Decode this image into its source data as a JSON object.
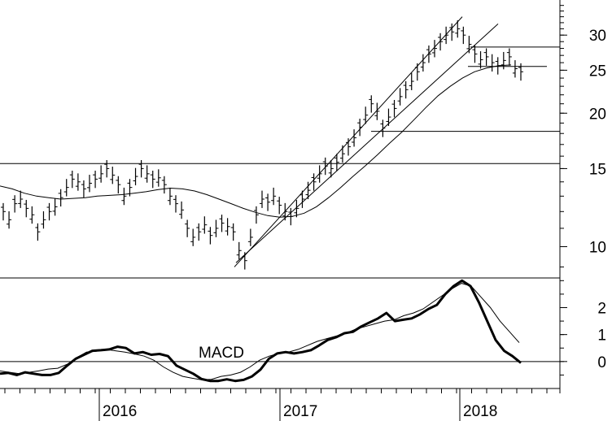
{
  "chart_data": [
    {
      "type": "line",
      "panel": "price",
      "scale": "log",
      "style": "ohlc-bars",
      "ylim": [
        8.5,
        36
      ],
      "yticks": [
        10,
        15,
        20,
        25,
        30
      ],
      "ytick_labels": [
        "10",
        "15",
        "20",
        "25",
        "30"
      ],
      "x_ticks": [
        "2016",
        "2017",
        "2018"
      ],
      "series": [
        {
          "values": [
            12.0,
            11.5,
            12.5,
            12.8,
            12.2,
            11.8,
            10.8,
            11.5,
            12.0,
            12.3,
            12.9,
            13.6,
            14.2,
            14.0,
            13.5,
            13.9,
            14.2,
            14.6,
            15.0,
            14.5,
            13.8,
            13.0,
            13.6,
            14.4,
            15.0,
            14.6,
            14.2,
            14.3,
            13.8,
            13.0,
            12.5,
            12.1,
            11.0,
            10.5,
            10.8,
            11.2,
            10.6,
            11.0,
            11.3,
            11.1,
            10.8,
            9.8,
            9.3,
            10.5,
            11.8,
            12.8,
            12.6,
            13.0,
            12.4,
            12.0,
            11.7,
            12.2,
            12.8,
            13.4,
            14.0,
            14.6,
            15.2,
            15.0,
            15.5,
            16.2,
            16.8,
            17.6,
            18.6,
            19.8,
            21.0,
            20.2,
            18.5,
            19.6,
            20.5,
            21.8,
            22.6,
            23.6,
            24.8,
            26.0,
            27.2,
            28.0,
            29.0,
            30.0,
            30.5,
            31.0,
            30.0,
            28.6,
            27.2,
            26.4,
            26.8,
            26.0,
            25.6,
            26.3,
            26.8,
            25.2,
            24.8
          ]
        },
        {
          "values": [
            13.7,
            13.5,
            13.2,
            13.0,
            12.9,
            12.8,
            12.85,
            12.9,
            13.0,
            13.05,
            13.1,
            13.2,
            13.3,
            13.45,
            13.55,
            13.5,
            13.35,
            13.1,
            12.8,
            12.5,
            12.2,
            11.95,
            11.75,
            11.65,
            11.7,
            11.9,
            12.3,
            12.9,
            13.6,
            14.4,
            15.2,
            16.1,
            17.1,
            18.1,
            19.3,
            20.6,
            21.9,
            23.0,
            24.0,
            24.8,
            25.3,
            25.6,
            25.7
          ]
        }
      ],
      "channel": [
        [
          [
            9.0,
            32.0
          ],
          [
            9.7,
            33.0
          ]
        ],
        [
          [
            9.2,
            31.0
          ],
          [
            9.0,
            31.8
          ]
        ],
        [
          [
            11.7,
            25.2
          ],
          [
            11.3,
            24.5
          ]
        ]
      ],
      "horizontal_levels": [
        15.4,
        18.2,
        25.5,
        28.2
      ]
    },
    {
      "type": "line",
      "panel": "indicator",
      "ylim": [
        -1.0,
        3.1
      ],
      "yticks": [
        0,
        1,
        2
      ],
      "ytick_labels": [
        "0",
        "1",
        "2"
      ],
      "annotations": [
        {
          "text": "MACD"
        }
      ],
      "zero_line": true,
      "series": [
        {
          "values": [
            -0.45,
            -0.42,
            -0.5,
            -0.4,
            -0.45,
            -0.5,
            -0.5,
            -0.42,
            -0.15,
            0.1,
            0.25,
            0.4,
            0.42,
            0.45,
            0.55,
            0.5,
            0.3,
            0.35,
            0.25,
            0.28,
            0.2,
            -0.15,
            -0.3,
            -0.45,
            -0.65,
            -0.72,
            -0.72,
            -0.66,
            -0.72,
            -0.68,
            -0.55,
            -0.3,
            0.1,
            0.3,
            0.35,
            0.3,
            0.35,
            0.42,
            0.6,
            0.8,
            0.9,
            1.05,
            1.1,
            1.3,
            1.45,
            1.6,
            1.8,
            1.5,
            1.55,
            1.6,
            1.75,
            1.95,
            2.1,
            2.5,
            2.8,
            3.0,
            2.8,
            2.2,
            1.5,
            0.8,
            0.4,
            0.2,
            -0.05
          ]
        },
        {
          "values": [
            -0.35,
            -0.4,
            -0.45,
            -0.4,
            -0.35,
            -0.28,
            -0.25,
            -0.1,
            0.15,
            0.35,
            0.38,
            0.45,
            0.4,
            0.35,
            0.28,
            0.2,
            0.05,
            -0.2,
            -0.4,
            -0.55,
            -0.62,
            -0.68,
            -0.66,
            -0.55,
            -0.5,
            -0.4,
            -0.2,
            0.05,
            0.2,
            0.3,
            0.35,
            0.45,
            0.6,
            0.75,
            0.85,
            0.95,
            1.05,
            1.2,
            1.3,
            1.4,
            1.5,
            1.55,
            1.7,
            1.8,
            1.95,
            2.2,
            2.45,
            2.7,
            2.9,
            2.8,
            2.4,
            2.0,
            1.5,
            1.1,
            0.7
          ]
        }
      ]
    }
  ]
}
